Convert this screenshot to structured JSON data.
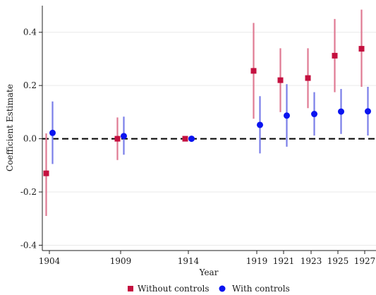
{
  "chart_data": {
    "type": "scatter",
    "subtype": "coefficient plot with confidence intervals",
    "xlabel": "Year",
    "ylabel": "Coefficient Estimate",
    "x_ticks": [
      1904,
      1909,
      1914,
      1919,
      1921,
      1923,
      1925,
      1927
    ],
    "ylim": [
      -0.42,
      0.5
    ],
    "y_ticks": [
      -0.4,
      -0.2,
      0.0,
      0.2,
      0.4
    ],
    "y_tick_labels": [
      "-0.4",
      "-0.2",
      "0.0",
      "0.2",
      "0.4"
    ],
    "grid": true,
    "reference_line": {
      "y": 0,
      "style": "dashed",
      "color": "#000000"
    },
    "legend_position": "bottom-center",
    "series": [
      {
        "name": "Without controls",
        "marker": "square",
        "color": "#c4103f",
        "ci_color": "#e07a93",
        "points": [
          {
            "x": 1904,
            "y": -0.13,
            "lo": -0.29,
            "hi": 0.02
          },
          {
            "x": 1909,
            "y": 0.0,
            "lo": -0.08,
            "hi": 0.08
          },
          {
            "x": 1914,
            "y": 0.0,
            "lo": 0.0,
            "hi": 0.0
          },
          {
            "x": 1919,
            "y": 0.255,
            "lo": 0.075,
            "hi": 0.435
          },
          {
            "x": 1921,
            "y": 0.22,
            "lo": 0.1,
            "hi": 0.34
          },
          {
            "x": 1923,
            "y": 0.228,
            "lo": 0.115,
            "hi": 0.34
          },
          {
            "x": 1925,
            "y": 0.312,
            "lo": 0.175,
            "hi": 0.45
          },
          {
            "x": 1927,
            "y": 0.338,
            "lo": 0.195,
            "hi": 0.485
          }
        ]
      },
      {
        "name": "With controls",
        "marker": "circle",
        "color": "#0a14f0",
        "ci_color": "#7a7ee8",
        "points": [
          {
            "x": 1904,
            "y": 0.022,
            "lo": -0.095,
            "hi": 0.14
          },
          {
            "x": 1909,
            "y": 0.01,
            "lo": -0.06,
            "hi": 0.083
          },
          {
            "x": 1914,
            "y": 0.0,
            "lo": 0.0,
            "hi": 0.0
          },
          {
            "x": 1919,
            "y": 0.052,
            "lo": -0.055,
            "hi": 0.16
          },
          {
            "x": 1921,
            "y": 0.087,
            "lo": -0.03,
            "hi": 0.205
          },
          {
            "x": 1923,
            "y": 0.093,
            "lo": 0.012,
            "hi": 0.175
          },
          {
            "x": 1925,
            "y": 0.102,
            "lo": 0.018,
            "hi": 0.187
          },
          {
            "x": 1927,
            "y": 0.103,
            "lo": 0.012,
            "hi": 0.195
          }
        ]
      }
    ]
  }
}
